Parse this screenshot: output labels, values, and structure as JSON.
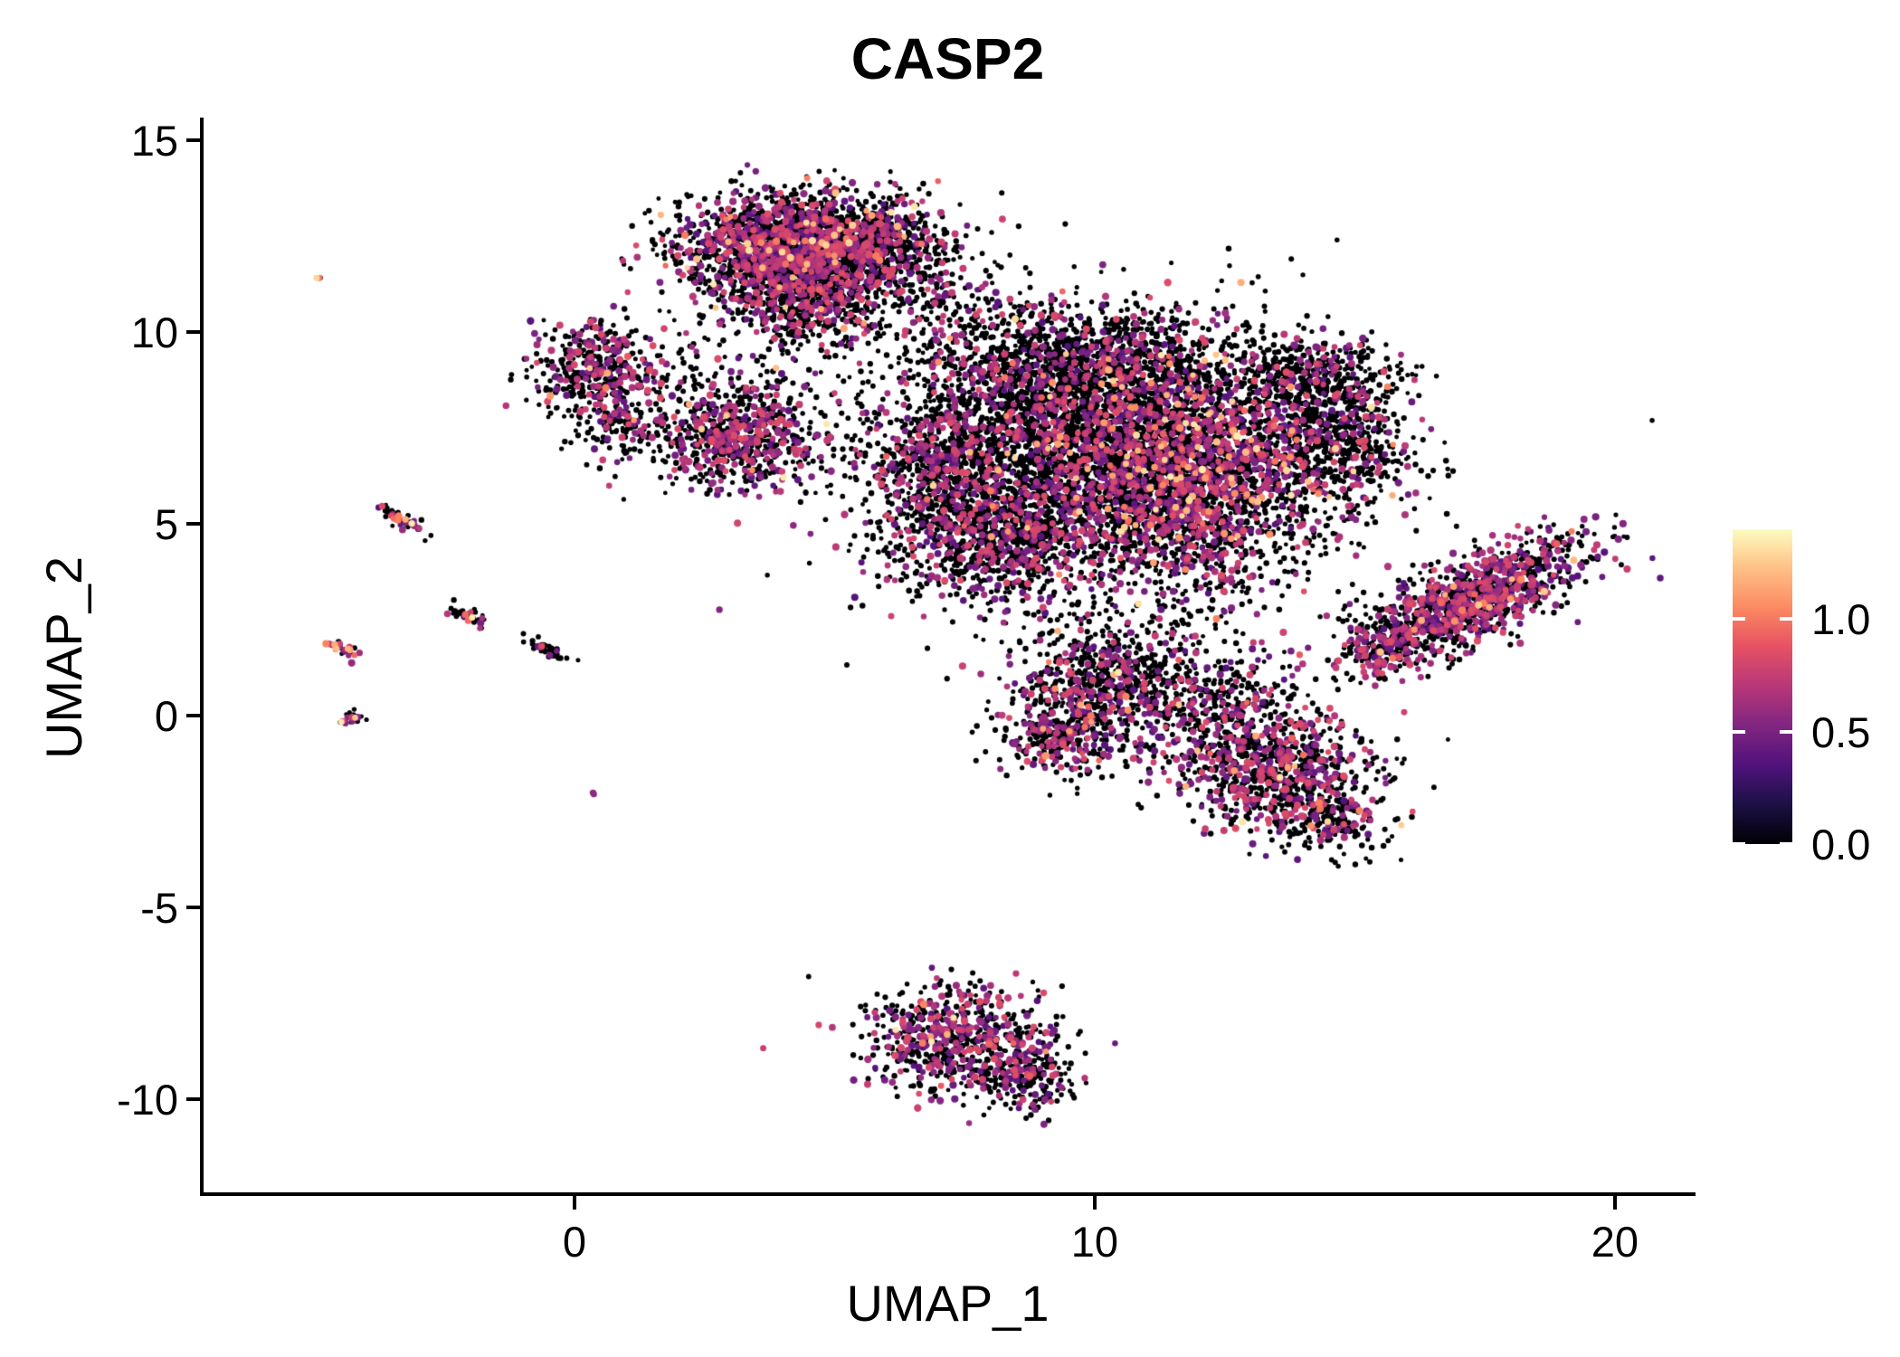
{
  "chart_data": {
    "type": "scatter",
    "title": "CASP2",
    "xlabel": "UMAP_1",
    "ylabel": "UMAP_2",
    "xlim": [
      -7.13,
      21.48
    ],
    "ylim": [
      -12.48,
      15.59
    ],
    "x_ticks": [
      0,
      10,
      20
    ],
    "y_ticks": [
      15,
      10,
      5,
      0,
      -5,
      -10
    ],
    "grid": false,
    "axis_color": "#000000",
    "background_color": "#ffffff",
    "seed": 42,
    "legend": {
      "position": "right",
      "tick_labels": [
        "1.0",
        "0.5",
        "0.0"
      ],
      "tick_values": [
        1.0,
        0.5,
        0.0
      ],
      "value_range": [
        0,
        1.4
      ]
    },
    "colormap": {
      "name": "magma",
      "stops": [
        [
          0.0,
          "#000004"
        ],
        [
          0.13,
          "#1D1147"
        ],
        [
          0.25,
          "#51127C"
        ],
        [
          0.38,
          "#822681"
        ],
        [
          0.5,
          "#B73779"
        ],
        [
          0.63,
          "#E75263"
        ],
        [
          0.75,
          "#FC8961"
        ],
        [
          0.88,
          "#FEC287"
        ],
        [
          1.0,
          "#FCFDBF"
        ]
      ]
    },
    "clusters": [
      {
        "name": "top-blob-main",
        "cx": 4.2,
        "cy": 12.2,
        "sx": 1.05,
        "sy": 0.7,
        "angle": 0,
        "n": 2000,
        "pos_frac": 0.32,
        "hot_frac": 0.015
      },
      {
        "name": "top-blob-east",
        "cx": 5.9,
        "cy": 12.4,
        "sx": 0.6,
        "sy": 0.5,
        "angle": 0,
        "n": 350,
        "pos_frac": 0.25,
        "hot_frac": 0.01
      },
      {
        "name": "top-blob-low",
        "cx": 4.4,
        "cy": 10.7,
        "sx": 0.7,
        "sy": 0.55,
        "angle": 0,
        "n": 400,
        "pos_frac": 0.28,
        "hot_frac": 0.008
      },
      {
        "name": "top-scatter",
        "cx": 5.2,
        "cy": 11.3,
        "sx": 1.6,
        "sy": 1.2,
        "angle": 0,
        "n": 220,
        "pos_frac": 0.2,
        "hot_frac": 0.005
      },
      {
        "name": "left-small",
        "cx": 0.35,
        "cy": 9.1,
        "sx": 0.55,
        "sy": 0.65,
        "angle": 0,
        "n": 380,
        "pos_frac": 0.3,
        "hot_frac": 0.02
      },
      {
        "name": "left-small-tail",
        "cx": 0.9,
        "cy": 7.7,
        "sx": 0.45,
        "sy": 0.5,
        "angle": 0,
        "n": 130,
        "pos_frac": 0.3,
        "hot_frac": 0.01
      },
      {
        "name": "mid-blob",
        "cx": 3.1,
        "cy": 7.2,
        "sx": 0.8,
        "sy": 0.6,
        "angle": 0,
        "n": 600,
        "pos_frac": 0.4,
        "hot_frac": 0.008
      },
      {
        "name": "mid-blob-halo",
        "cx": 3.3,
        "cy": 7.9,
        "sx": 1.2,
        "sy": 0.9,
        "angle": 0,
        "n": 120,
        "pos_frac": 0.2,
        "hot_frac": 0.0
      },
      {
        "name": "ab-bridge",
        "cx": 2.1,
        "cy": 8.9,
        "sx": 0.9,
        "sy": 0.8,
        "angle": 0,
        "n": 90,
        "pos_frac": 0.2,
        "hot_frac": 0.0
      },
      {
        "name": "ad-bridge",
        "cx": 6.9,
        "cy": 10.9,
        "sx": 0.8,
        "sy": 0.8,
        "angle": 0,
        "n": 130,
        "pos_frac": 0.18,
        "hot_frac": 0.0
      },
      {
        "name": "central-main",
        "cx": 9.2,
        "cy": 7.2,
        "sx": 1.7,
        "sy": 1.4,
        "angle": 0,
        "n": 2800,
        "pos_frac": 0.2,
        "hot_frac": 0.012
      },
      {
        "name": "central-right",
        "cx": 11.9,
        "cy": 6.2,
        "sx": 1.2,
        "sy": 1.6,
        "angle": 0,
        "n": 2300,
        "pos_frac": 0.3,
        "hot_frac": 0.045
      },
      {
        "name": "central-top",
        "cx": 9.8,
        "cy": 9.3,
        "sx": 1.5,
        "sy": 0.75,
        "angle": 0,
        "n": 1000,
        "pos_frac": 0.18,
        "hot_frac": 0.008
      },
      {
        "name": "central-low-left",
        "cx": 8.2,
        "cy": 4.6,
        "sx": 1.1,
        "sy": 0.8,
        "angle": 0,
        "n": 800,
        "pos_frac": 0.28,
        "hot_frac": 0.01
      },
      {
        "name": "central-left-spur",
        "cx": 7.0,
        "cy": 6.2,
        "sx": 0.6,
        "sy": 1.0,
        "angle": 0,
        "n": 350,
        "pos_frac": 0.3,
        "hot_frac": 0.005
      },
      {
        "name": "central-halo",
        "cx": 10.2,
        "cy": 5.8,
        "sx": 2.8,
        "sy": 2.6,
        "angle": 0,
        "n": 450,
        "pos_frac": 0.22,
        "hot_frac": 0.01
      },
      {
        "name": "right-lobe",
        "cx": 14.6,
        "cy": 7.4,
        "sx": 0.8,
        "sy": 1.1,
        "angle": 0,
        "n": 800,
        "pos_frac": 0.17,
        "hot_frac": 0.008
      },
      {
        "name": "right-lobe-top",
        "cx": 13.9,
        "cy": 8.9,
        "sx": 0.75,
        "sy": 0.45,
        "angle": 0,
        "n": 250,
        "pos_frac": 0.15,
        "hot_frac": 0.0
      },
      {
        "name": "diag-right",
        "cx": 17.4,
        "cy": 3.1,
        "sx": 1.2,
        "sy": 0.5,
        "angle": 0.6,
        "n": 1000,
        "pos_frac": 0.45,
        "hot_frac": 0.015
      },
      {
        "name": "diag-right-tail",
        "cx": 15.7,
        "cy": 1.9,
        "sx": 0.6,
        "sy": 0.4,
        "angle": 0.55,
        "n": 250,
        "pos_frac": 0.4,
        "hot_frac": 0.01
      },
      {
        "name": "below-center",
        "cx": 10.3,
        "cy": 0.7,
        "sx": 0.95,
        "sy": 0.85,
        "angle": 0,
        "n": 800,
        "pos_frac": 0.3,
        "hot_frac": 0.02
      },
      {
        "name": "below-center-spur",
        "cx": 9.3,
        "cy": -0.6,
        "sx": 0.5,
        "sy": 0.45,
        "angle": 0,
        "n": 200,
        "pos_frac": 0.35,
        "hot_frac": 0.01
      },
      {
        "name": "low-right",
        "cx": 13.6,
        "cy": -1.5,
        "sx": 0.95,
        "sy": 0.75,
        "angle": 0,
        "n": 800,
        "pos_frac": 0.3,
        "hot_frac": 0.02
      },
      {
        "name": "low-right-bridge",
        "cx": 12.5,
        "cy": 0.2,
        "sx": 0.8,
        "sy": 0.8,
        "angle": 0,
        "n": 350,
        "pos_frac": 0.25,
        "hot_frac": 0.01
      },
      {
        "name": "low-right-tail",
        "cx": 14.6,
        "cy": -2.8,
        "sx": 0.5,
        "sy": 0.45,
        "angle": 0,
        "n": 150,
        "pos_frac": 0.3,
        "hot_frac": 0.005
      },
      {
        "name": "bottom-cluster",
        "cx": 7.3,
        "cy": -8.4,
        "sx": 0.85,
        "sy": 0.65,
        "angle": 0,
        "n": 650,
        "pos_frac": 0.35,
        "hot_frac": 0.012
      },
      {
        "name": "bottom-tail",
        "cx": 8.6,
        "cy": -9.4,
        "sx": 0.5,
        "sy": 0.5,
        "angle": 0,
        "n": 220,
        "pos_frac": 0.3,
        "hot_frac": 0.008
      },
      {
        "name": "streak-a",
        "cx": -3.3,
        "cy": 5.1,
        "sx": 0.3,
        "sy": 0.09,
        "angle": -0.65,
        "n": 50,
        "pos_frac": 0.25,
        "hot_frac": 0.12
      },
      {
        "name": "streak-b",
        "cx": -2.05,
        "cy": 2.6,
        "sx": 0.22,
        "sy": 0.08,
        "angle": -0.6,
        "n": 38,
        "pos_frac": 0.3,
        "hot_frac": 0.08
      },
      {
        "name": "streak-c",
        "cx": -0.5,
        "cy": 1.7,
        "sx": 0.24,
        "sy": 0.08,
        "angle": -0.5,
        "n": 42,
        "pos_frac": 0.08,
        "hot_frac": 0.0
      },
      {
        "name": "streak-d",
        "cx": -4.5,
        "cy": 1.75,
        "sx": 0.2,
        "sy": 0.08,
        "angle": -0.6,
        "n": 30,
        "pos_frac": 0.35,
        "hot_frac": 0.4
      },
      {
        "name": "dot-e",
        "cx": -4.3,
        "cy": -0.05,
        "sx": 0.11,
        "sy": 0.08,
        "angle": 0,
        "n": 20,
        "pos_frac": 0.25,
        "hot_frac": 0.15
      },
      {
        "name": "lone-1",
        "cx": 0.35,
        "cy": -2.05,
        "sx": 0.02,
        "sy": 0.02,
        "angle": 0,
        "n": 2,
        "pos_frac": 1.0,
        "hot_frac": 0.0
      },
      {
        "name": "lone-2",
        "cx": -4.95,
        "cy": 11.4,
        "sx": 0.05,
        "sy": 0.05,
        "angle": 0,
        "n": 4,
        "pos_frac": 0.6,
        "hot_frac": 0.2
      }
    ]
  }
}
